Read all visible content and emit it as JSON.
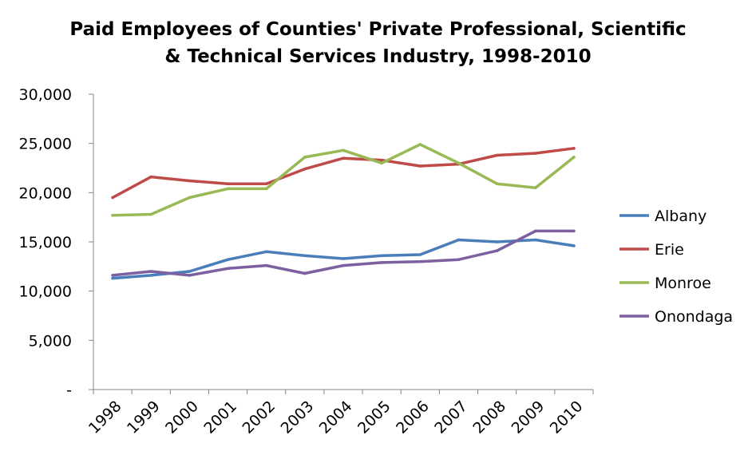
{
  "chart_data": {
    "type": "line",
    "title_lines": [
      "Paid Employees of Counties' Private Professional, Scientific",
      "& Technical Services Industry, 1998-2010"
    ],
    "categories": [
      "1998",
      "1999",
      "2000",
      "2001",
      "2002",
      "2003",
      "2004",
      "2005",
      "2006",
      "2007",
      "2008",
      "2009",
      "2010"
    ],
    "y_tick_labels": [
      "-",
      "5,000",
      "10,000",
      "15,000",
      "20,000",
      "25,000",
      "30,000"
    ],
    "y_ticks": [
      0,
      5000,
      10000,
      15000,
      20000,
      25000,
      30000
    ],
    "ylim": [
      0,
      30000
    ],
    "grid": false,
    "legend_position": "right",
    "series": [
      {
        "name": "Albany",
        "color": "#4a7ebb",
        "values": [
          11300,
          11600,
          12000,
          13200,
          14000,
          13600,
          13300,
          13600,
          13700,
          15200,
          15000,
          15200,
          14600
        ]
      },
      {
        "name": "Erie",
        "color": "#be4b48",
        "values": [
          19500,
          21600,
          21200,
          20900,
          20900,
          22400,
          23500,
          23300,
          22700,
          22900,
          23800,
          24000,
          24500
        ]
      },
      {
        "name": "Monroe",
        "color": "#98b954",
        "values": [
          17700,
          17800,
          19500,
          20400,
          20400,
          23600,
          24300,
          23000,
          24900,
          23000,
          20900,
          20500,
          23600
        ]
      },
      {
        "name": "Onondaga",
        "color": "#7d60a0",
        "values": [
          11600,
          12000,
          11600,
          12300,
          12600,
          11800,
          12600,
          12900,
          13000,
          13200,
          14100,
          16100,
          16100
        ]
      }
    ]
  }
}
